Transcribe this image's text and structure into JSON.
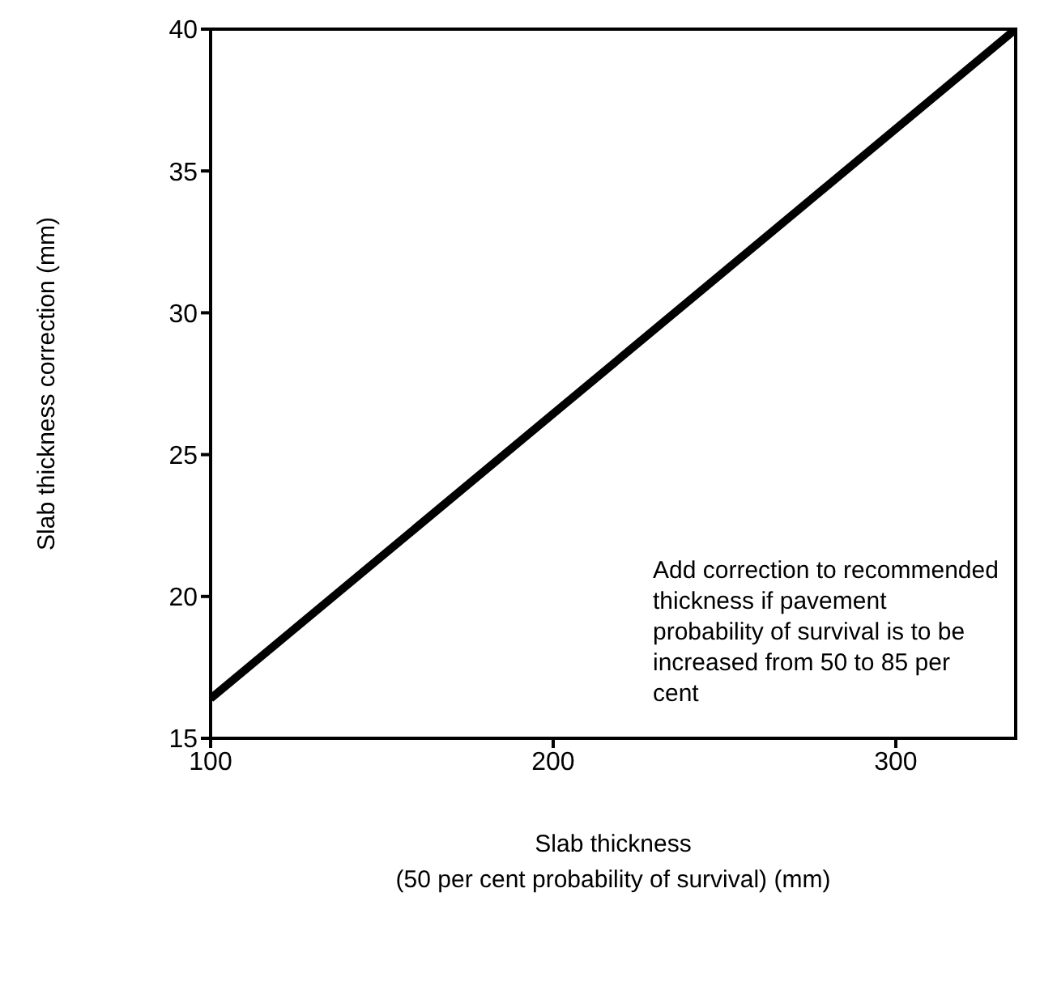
{
  "chart_data": {
    "type": "line",
    "xlabel": "Slab thickness\n(50 per cent probability of survival)  (mm)",
    "ylabel": "Slab thickness correction (mm)",
    "x": [
      100,
      335
    ],
    "series": [
      {
        "color": "#000000",
        "values": [
          16.4,
          40
        ]
      }
    ],
    "xlim": [
      100,
      335
    ],
    "xticks": [
      100,
      200,
      300
    ],
    "ylim": [
      15,
      40
    ],
    "yticks": [
      15,
      20,
      25,
      30,
      35,
      40
    ],
    "grid": false,
    "legend": false,
    "marker": "none",
    "line_style": "solid",
    "annotations": [
      "Add correction to recommended thickness if pavement probability of survival is to be increased from 50 to 85 per cent"
    ]
  }
}
